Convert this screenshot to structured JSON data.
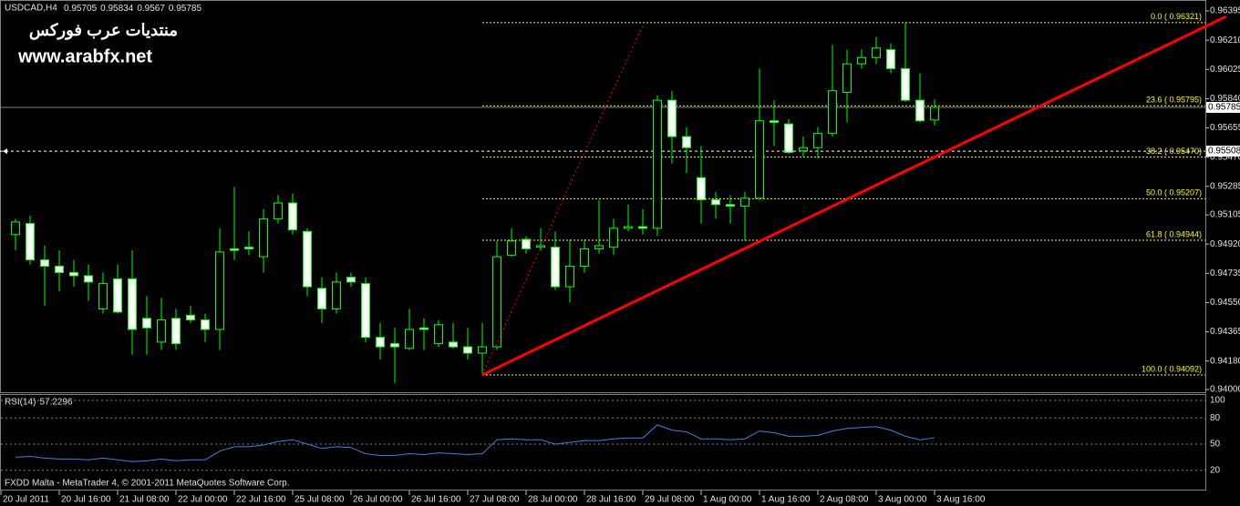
{
  "chart_data": [
    {
      "type": "candlestick",
      "symbol": "USDCAD,H4",
      "watermark": [
        "منتديات عرب فوركس",
        "www.arabfx.net"
      ],
      "open": [
        0.9498,
        0.9505,
        0.9482,
        0.9478,
        0.9474,
        0.9472,
        0.9451,
        0.947,
        0.947,
        0.9445,
        0.943,
        0.9445,
        0.9447,
        0.9444,
        0.9438,
        0.9489,
        0.949,
        0.9484,
        0.9508,
        0.9518,
        0.95,
        0.9464,
        0.9451,
        0.9471,
        0.9467,
        0.9433,
        0.9429,
        0.9426,
        0.9439,
        0.9429,
        0.943,
        0.9427,
        0.9423,
        0.9427,
        0.9485,
        0.9495,
        0.949,
        0.949,
        0.9465,
        0.9478,
        0.9489,
        0.949,
        0.9502,
        0.9503,
        0.9502,
        0.9583,
        0.956,
        0.9534,
        0.952,
        0.9517,
        0.9516,
        0.9521,
        0.957,
        0.9568,
        0.9551,
        0.9553,
        0.9562,
        0.9588,
        0.9606,
        0.961,
        0.9615,
        0.9603,
        0.9583,
        0.95705
      ],
      "high": [
        0.9508,
        0.951,
        0.9491,
        0.9488,
        0.9482,
        0.9479,
        0.9474,
        0.9479,
        0.9488,
        0.9459,
        0.9458,
        0.9451,
        0.9453,
        0.9448,
        0.9502,
        0.9528,
        0.95,
        0.9514,
        0.9523,
        0.9524,
        0.9502,
        0.9471,
        0.9474,
        0.9474,
        0.9471,
        0.9442,
        0.9439,
        0.9451,
        0.9445,
        0.9444,
        0.9442,
        0.9439,
        0.9442,
        0.9494,
        0.9502,
        0.9497,
        0.9502,
        0.95,
        0.9495,
        0.9495,
        0.952,
        0.9508,
        0.9517,
        0.9514,
        0.9586,
        0.9589,
        0.9566,
        0.9554,
        0.9525,
        0.9523,
        0.9525,
        0.9603,
        0.9583,
        0.9571,
        0.956,
        0.9566,
        0.9618,
        0.9615,
        0.9615,
        0.9623,
        0.9619,
        0.96321,
        0.96,
        0.95834
      ],
      "low": [
        0.9488,
        0.9479,
        0.9453,
        0.9462,
        0.9465,
        0.9456,
        0.9448,
        0.9448,
        0.9422,
        0.9422,
        0.9425,
        0.9425,
        0.9442,
        0.943,
        0.9425,
        0.9482,
        0.9485,
        0.9474,
        0.9505,
        0.9498,
        0.9459,
        0.9442,
        0.9448,
        0.9465,
        0.943,
        0.9419,
        0.9404,
        0.9425,
        0.9425,
        0.9427,
        0.9426,
        0.9419,
        0.94092,
        0.9425,
        0.9484,
        0.9486,
        0.9488,
        0.9463,
        0.9455,
        0.9474,
        0.9486,
        0.9485,
        0.95,
        0.9498,
        0.9497,
        0.9543,
        0.9537,
        0.9505,
        0.9508,
        0.9505,
        0.9494,
        0.952,
        0.9554,
        0.9549,
        0.9547,
        0.9546,
        0.956,
        0.9569,
        0.9603,
        0.9606,
        0.96,
        0.9582,
        0.9569,
        0.9567
      ],
      "close": [
        0.9506,
        0.9482,
        0.9478,
        0.9474,
        0.9472,
        0.9468,
        0.9467,
        0.9449,
        0.9438,
        0.9439,
        0.9444,
        0.9429,
        0.9444,
        0.9438,
        0.9487,
        0.9488,
        0.9489,
        0.9508,
        0.9518,
        0.9501,
        0.9465,
        0.9451,
        0.9468,
        0.9468,
        0.9433,
        0.9427,
        0.9427,
        0.9438,
        0.9438,
        0.9441,
        0.9427,
        0.9423,
        0.9427,
        0.9484,
        0.9494,
        0.9489,
        0.9491,
        0.9465,
        0.9478,
        0.9489,
        0.9491,
        0.9502,
        0.9503,
        0.9502,
        0.9583,
        0.956,
        0.9553,
        0.952,
        0.9517,
        0.9516,
        0.9521,
        0.957,
        0.9569,
        0.955,
        0.9553,
        0.9562,
        0.9589,
        0.9606,
        0.961,
        0.9616,
        0.9603,
        0.9583,
        0.957,
        0.95785
      ],
      "color": "#00ff00",
      "bear_fill": "#ffffff",
      "bull_fill": "#000000",
      "ylim": [
        0.94,
        0.96395
      ],
      "yticks": [
        0.96395,
        {
          "value": 0.9621,
          "label": "0.96210"
        },
        0.96025,
        {
          "value": 0.9584,
          "label": "0.95840"
        },
        0.95655,
        {
          "value": 0.9547,
          "label": "0.95470"
        },
        0.95285,
        0.95105,
        {
          "value": 0.9492,
          "label": "0.94920"
        },
        0.94735,
        {
          "value": 0.9455,
          "label": "0.94550"
        },
        0.94365,
        {
          "value": 0.9418,
          "label": "0.94180"
        },
        {
          "value": 0.94,
          "label": "0.94000"
        }
      ],
      "order_line": 0.95508,
      "fibonacci": [
        {
          "value": 0.96321,
          "label": "0.0  ( 0.96321)"
        },
        {
          "value": 0.95795,
          "label": "23.6  ( 0.95795)"
        },
        {
          "value": 0.9547,
          "label": "38.2  ( 0.95470)"
        },
        {
          "value": 0.95207,
          "label": "50.0  ( 0.95207)"
        },
        {
          "value": 0.94944,
          "label": "61.8  ( 0.94944)"
        },
        {
          "value": 0.94092,
          "label": "100.0  ( 0.94092)"
        }
      ],
      "trendline": {
        "x": [
          32,
          83
        ],
        "y": [
          0.94092,
          0.9636
        ],
        "color": "#ff0000"
      },
      "fib_diagonal": {
        "x": [
          32,
          43
        ],
        "y": [
          0.94092,
          0.963
        ],
        "color": "#ff0000"
      },
      "time_labels": [
        "20 Jul 2011",
        "20 Jul 16:00",
        "21 Jul 08:00",
        "22 Jul 00:00",
        "22 Jul 16:00",
        "25 Jul 08:00",
        "26 Jul 00:00",
        "26 Jul 16:00",
        "27 Jul 08:00",
        "28 Jul 00:00",
        "28 Jul 16:00",
        "29 Jul 08:00",
        "1 Aug 00:00",
        "1 Aug 16:00",
        "2 Aug 08:00",
        "3 Aug 00:00",
        "3 Aug 16:00"
      ]
    },
    {
      "type": "line",
      "title": "RSI(14)",
      "series": [
        {
          "name": "RSI(14)",
          "color": "#4a7fd8",
          "values": [
            35,
            36,
            34,
            33,
            33,
            32,
            34,
            32,
            30,
            31,
            33,
            31,
            32,
            32,
            42,
            47,
            47,
            49,
            53,
            55,
            50,
            45,
            47,
            46,
            39,
            37,
            37,
            39,
            38,
            40,
            39,
            38,
            39,
            55,
            56,
            55,
            55,
            50,
            52,
            54,
            54,
            56,
            57,
            57,
            72,
            66,
            64,
            56,
            56,
            55,
            56,
            65,
            63,
            59,
            59,
            60,
            65,
            68,
            69,
            70,
            66,
            59,
            55,
            57.2296
          ]
        }
      ],
      "ylim": [
        0,
        100
      ],
      "yticks": [
        100,
        80,
        50,
        20
      ]
    }
  ],
  "footer": "FXDD Malta - MetaTrader 4, © 2001-2011 MetaQuotes Software Corp."
}
